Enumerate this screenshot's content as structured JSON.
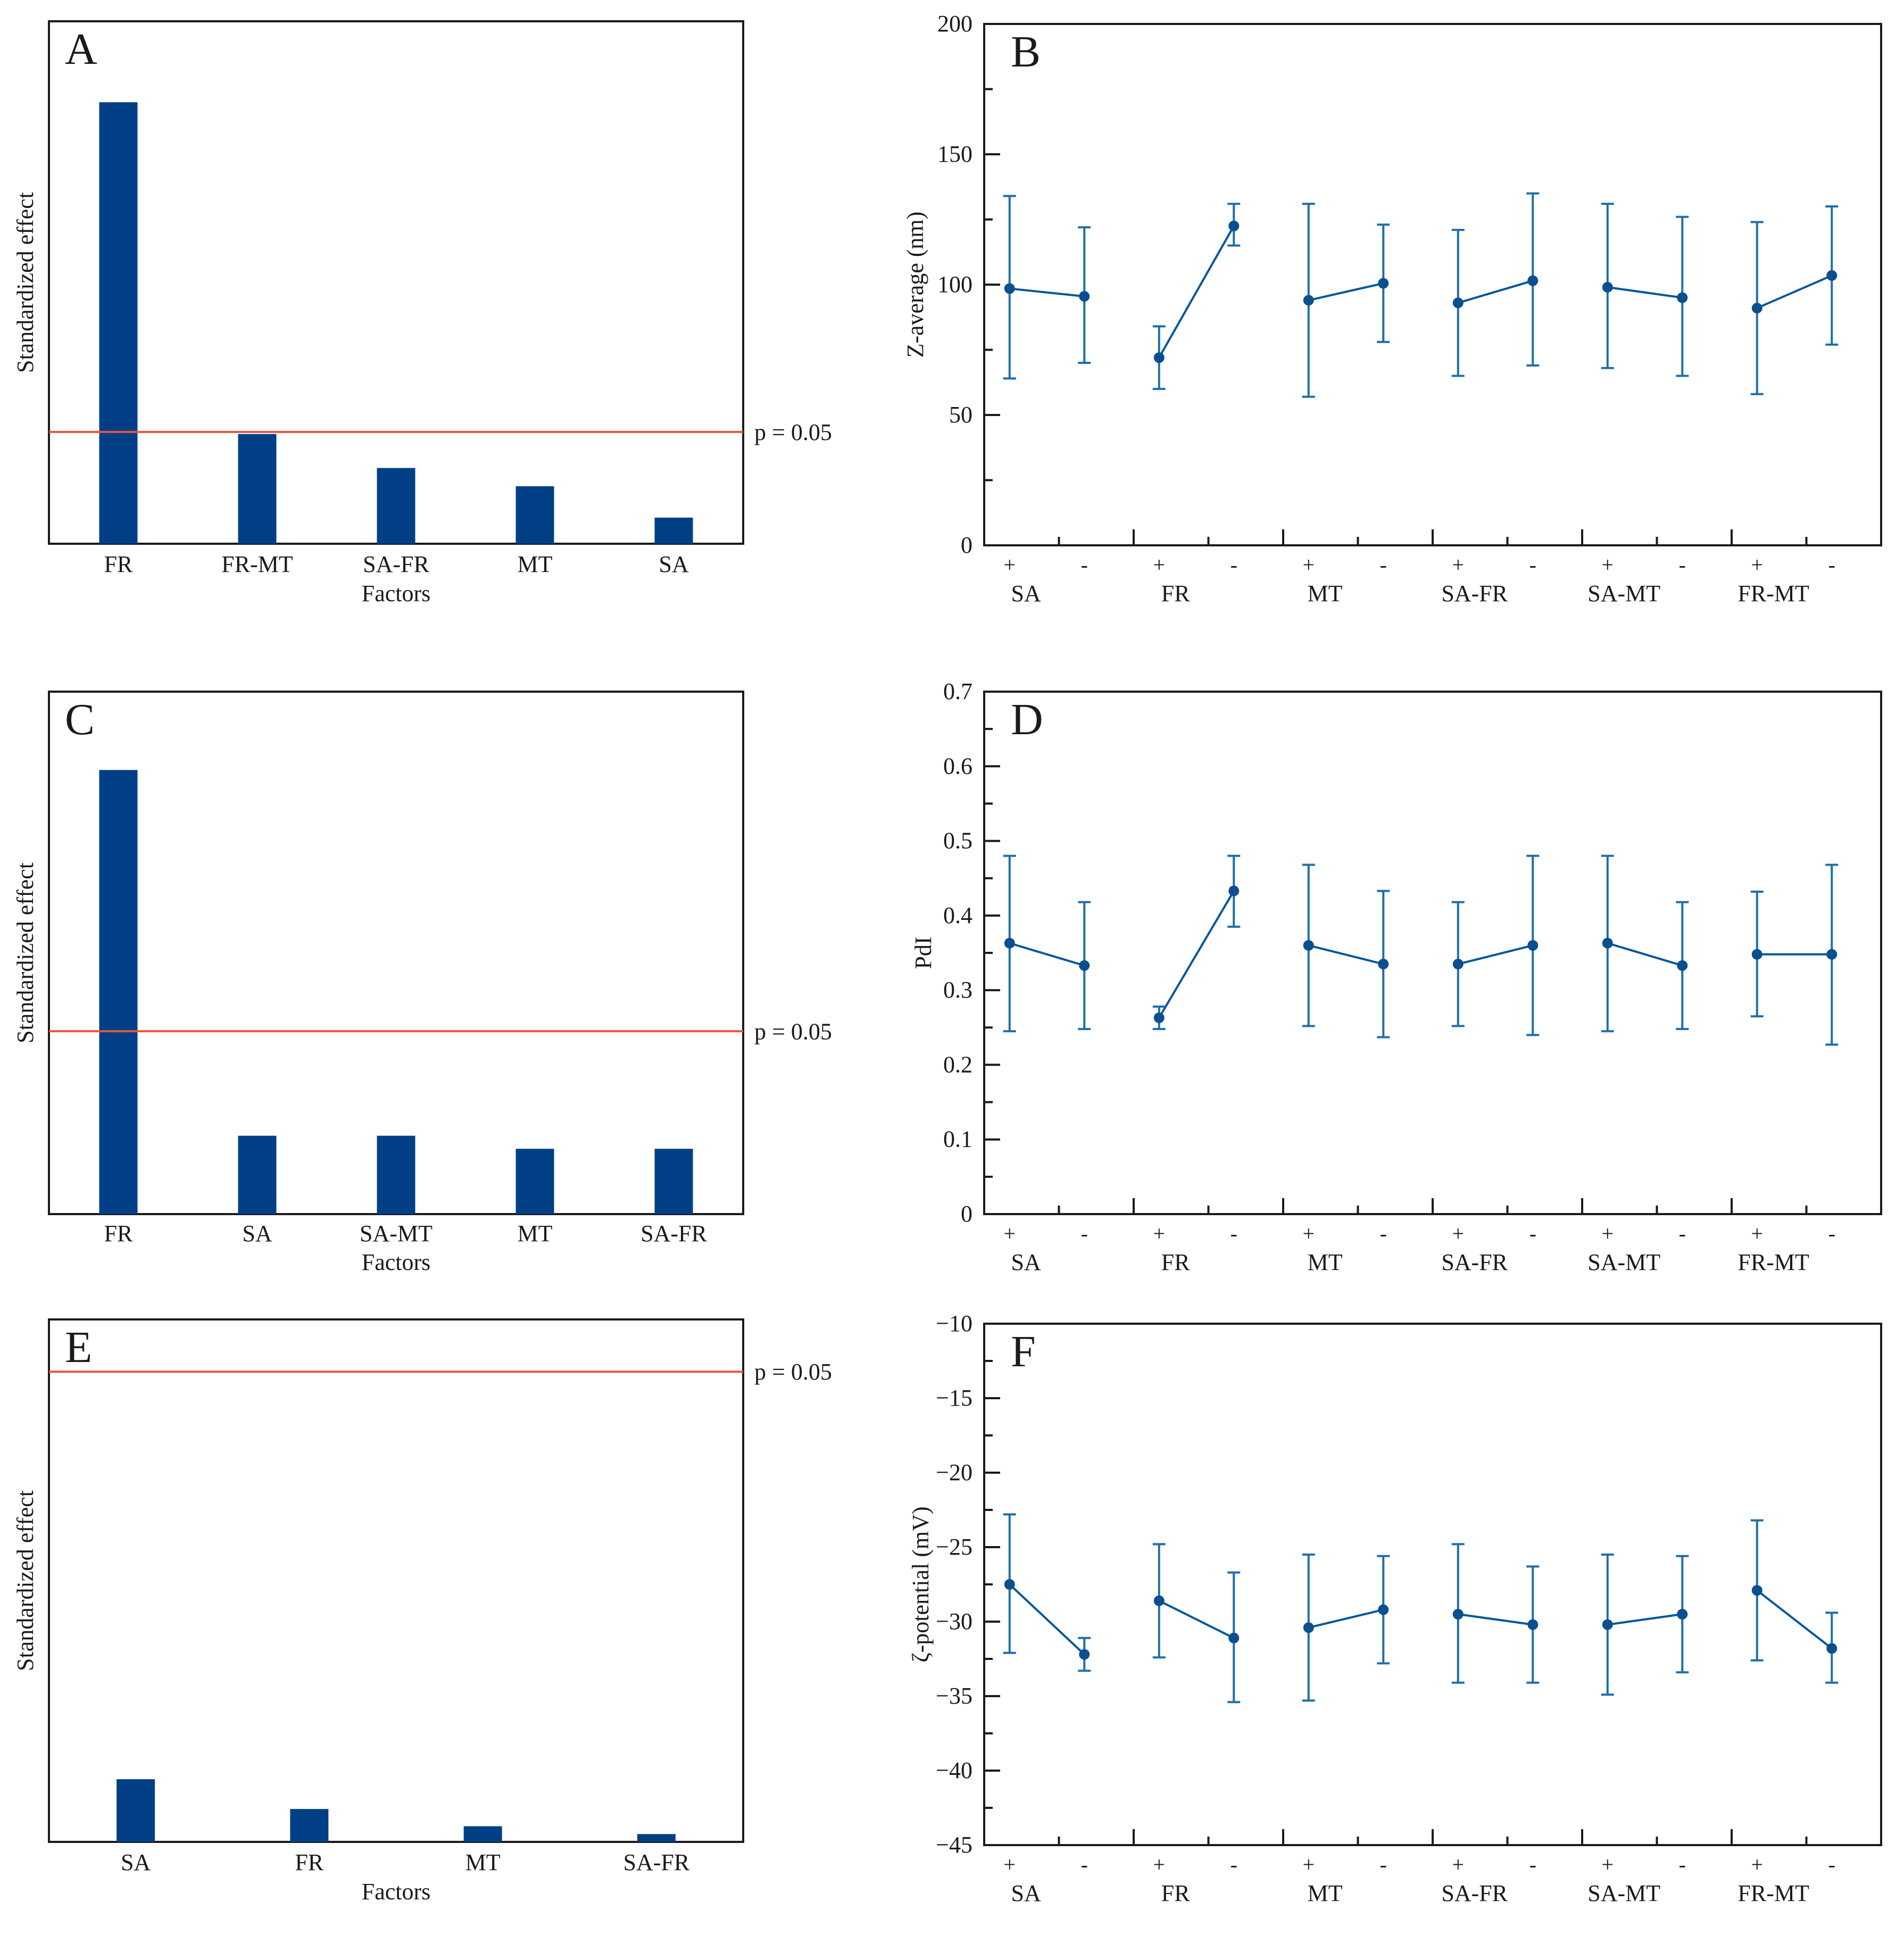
{
  "colors": {
    "bar": "#003f86",
    "ref_line": "#e8543c",
    "series": "#00579c",
    "error_bar": "#1f6ea8",
    "frame": "#1a1a1a"
  },
  "chart_data": [
    {
      "id": "A",
      "panel_label": "A",
      "type": "bar",
      "title": "",
      "xlabel": "Factors",
      "ylabel": "Standardized effect",
      "categories": [
        "FR",
        "FR-MT",
        "SA-FR",
        "MT",
        "SA"
      ],
      "values": [
        8.45,
        2.1,
        1.45,
        1.1,
        0.5
      ],
      "ylim": [
        0,
        10
      ],
      "y_ticks_shown": false,
      "reference_line": {
        "value": 2.14,
        "label": "p = 0.05"
      }
    },
    {
      "id": "B",
      "panel_label": "B",
      "type": "line",
      "title": "",
      "xlabel": "",
      "ylabel": "Z-average (nm)",
      "ylim": [
        0,
        200
      ],
      "yticks": [
        0,
        50,
        100,
        150,
        200
      ],
      "ytick_labels": [
        "0",
        "50",
        "100",
        "150",
        "200"
      ],
      "minor_yticks": [
        25,
        75,
        125,
        175
      ],
      "level_labels": [
        "+",
        "-"
      ],
      "groups": [
        {
          "factor": "SA",
          "means": [
            98.5,
            95.5
          ],
          "lower": [
            64,
            70
          ],
          "upper": [
            134,
            122
          ]
        },
        {
          "factor": "FR",
          "means": [
            72,
            122.5
          ],
          "lower": [
            60,
            115
          ],
          "upper": [
            84,
            131
          ]
        },
        {
          "factor": "MT",
          "means": [
            94,
            100.5
          ],
          "lower": [
            57,
            78
          ],
          "upper": [
            131,
            123
          ]
        },
        {
          "factor": "SA-FR",
          "means": [
            93,
            101.5
          ],
          "lower": [
            65,
            69
          ],
          "upper": [
            121,
            135
          ]
        },
        {
          "factor": "SA-MT",
          "means": [
            99,
            95
          ],
          "lower": [
            68,
            65
          ],
          "upper": [
            131,
            126
          ]
        },
        {
          "factor": "FR-MT",
          "means": [
            91,
            103.5
          ],
          "lower": [
            58,
            77
          ],
          "upper": [
            124,
            130
          ]
        }
      ]
    },
    {
      "id": "C",
      "panel_label": "C",
      "type": "bar",
      "title": "",
      "xlabel": "Factors",
      "ylabel": "Standardized effect",
      "categories": [
        "FR",
        "SA",
        "SA-MT",
        "MT",
        "SA-FR"
      ],
      "values": [
        8.5,
        1.5,
        1.5,
        1.25,
        1.25
      ],
      "ylim": [
        0,
        10
      ],
      "y_ticks_shown": false,
      "reference_line": {
        "value": 3.5,
        "label": "p = 0.05"
      }
    },
    {
      "id": "D",
      "panel_label": "D",
      "type": "line",
      "title": "",
      "xlabel": "",
      "ylabel": "PdI",
      "ylim": [
        0,
        0.7
      ],
      "yticks": [
        0,
        0.1,
        0.2,
        0.3,
        0.4,
        0.5,
        0.6,
        0.7
      ],
      "ytick_labels": [
        "0",
        "0.1",
        "0.2",
        "0.3",
        "0.4",
        "0.5",
        "0.6",
        "0.7"
      ],
      "minor_yticks": [
        0.05,
        0.15,
        0.25,
        0.35,
        0.45,
        0.55,
        0.65
      ],
      "level_labels": [
        "+",
        "-"
      ],
      "groups": [
        {
          "factor": "SA",
          "means": [
            0.363,
            0.333
          ],
          "lower": [
            0.245,
            0.248
          ],
          "upper": [
            0.48,
            0.418
          ]
        },
        {
          "factor": "FR",
          "means": [
            0.263,
            0.433
          ],
          "lower": [
            0.248,
            0.385
          ],
          "upper": [
            0.278,
            0.48
          ]
        },
        {
          "factor": "MT",
          "means": [
            0.36,
            0.335
          ],
          "lower": [
            0.252,
            0.237
          ],
          "upper": [
            0.468,
            0.433
          ]
        },
        {
          "factor": "SA-FR",
          "means": [
            0.335,
            0.36
          ],
          "lower": [
            0.252,
            0.24
          ],
          "upper": [
            0.418,
            0.48
          ]
        },
        {
          "factor": "SA-MT",
          "means": [
            0.363,
            0.333
          ],
          "lower": [
            0.245,
            0.248
          ],
          "upper": [
            0.48,
            0.418
          ]
        },
        {
          "factor": "FR-MT",
          "means": [
            0.348,
            0.348
          ],
          "lower": [
            0.265,
            0.227
          ],
          "upper": [
            0.432,
            0.468
          ]
        }
      ]
    },
    {
      "id": "E",
      "panel_label": "E",
      "type": "bar",
      "title": "",
      "xlabel": "Factors",
      "ylabel": "Standardized effect",
      "categories": [
        "SA",
        "FR",
        "MT",
        "SA-FR"
      ],
      "values": [
        1.2,
        0.63,
        0.3,
        0.15
      ],
      "ylim": [
        0,
        10
      ],
      "y_ticks_shown": false,
      "reference_line": {
        "value": 9.0,
        "label": "p = 0.05"
      }
    },
    {
      "id": "F",
      "panel_label": "F",
      "type": "line",
      "title": "",
      "xlabel": "",
      "ylabel": "ζ-potential (mV)",
      "ylim": [
        -45,
        -10
      ],
      "yticks": [
        -45,
        -40,
        -35,
        -30,
        -25,
        -20,
        -15,
        -10
      ],
      "ytick_labels": [
        "−45",
        "−40",
        "−35",
        "−30",
        "−25",
        "−20",
        "−15",
        "−10"
      ],
      "minor_yticks": [
        -42.5,
        -37.5,
        -32.5,
        -27.5,
        -22.5,
        -17.5,
        -12.5
      ],
      "level_labels": [
        "+",
        "-"
      ],
      "groups": [
        {
          "factor": "SA",
          "means": [
            -27.5,
            -32.2
          ],
          "lower": [
            -32.1,
            -33.3
          ],
          "upper": [
            -22.8,
            -31.1
          ]
        },
        {
          "factor": "FR",
          "means": [
            -28.6,
            -31.1
          ],
          "lower": [
            -32.4,
            -35.4
          ],
          "upper": [
            -24.8,
            -26.7
          ]
        },
        {
          "factor": "MT",
          "means": [
            -30.4,
            -29.2
          ],
          "lower": [
            -35.3,
            -32.8
          ],
          "upper": [
            -25.5,
            -25.6
          ]
        },
        {
          "factor": "SA-FR",
          "means": [
            -29.5,
            -30.2
          ],
          "lower": [
            -34.1,
            -34.1
          ],
          "upper": [
            -24.8,
            -26.3
          ]
        },
        {
          "factor": "SA-MT",
          "means": [
            -30.2,
            -29.5
          ],
          "lower": [
            -34.9,
            -33.4
          ],
          "upper": [
            -25.5,
            -25.6
          ]
        },
        {
          "factor": "FR-MT",
          "means": [
            -27.9,
            -31.8
          ],
          "lower": [
            -32.6,
            -34.1
          ],
          "upper": [
            -23.2,
            -29.4
          ]
        }
      ]
    }
  ]
}
